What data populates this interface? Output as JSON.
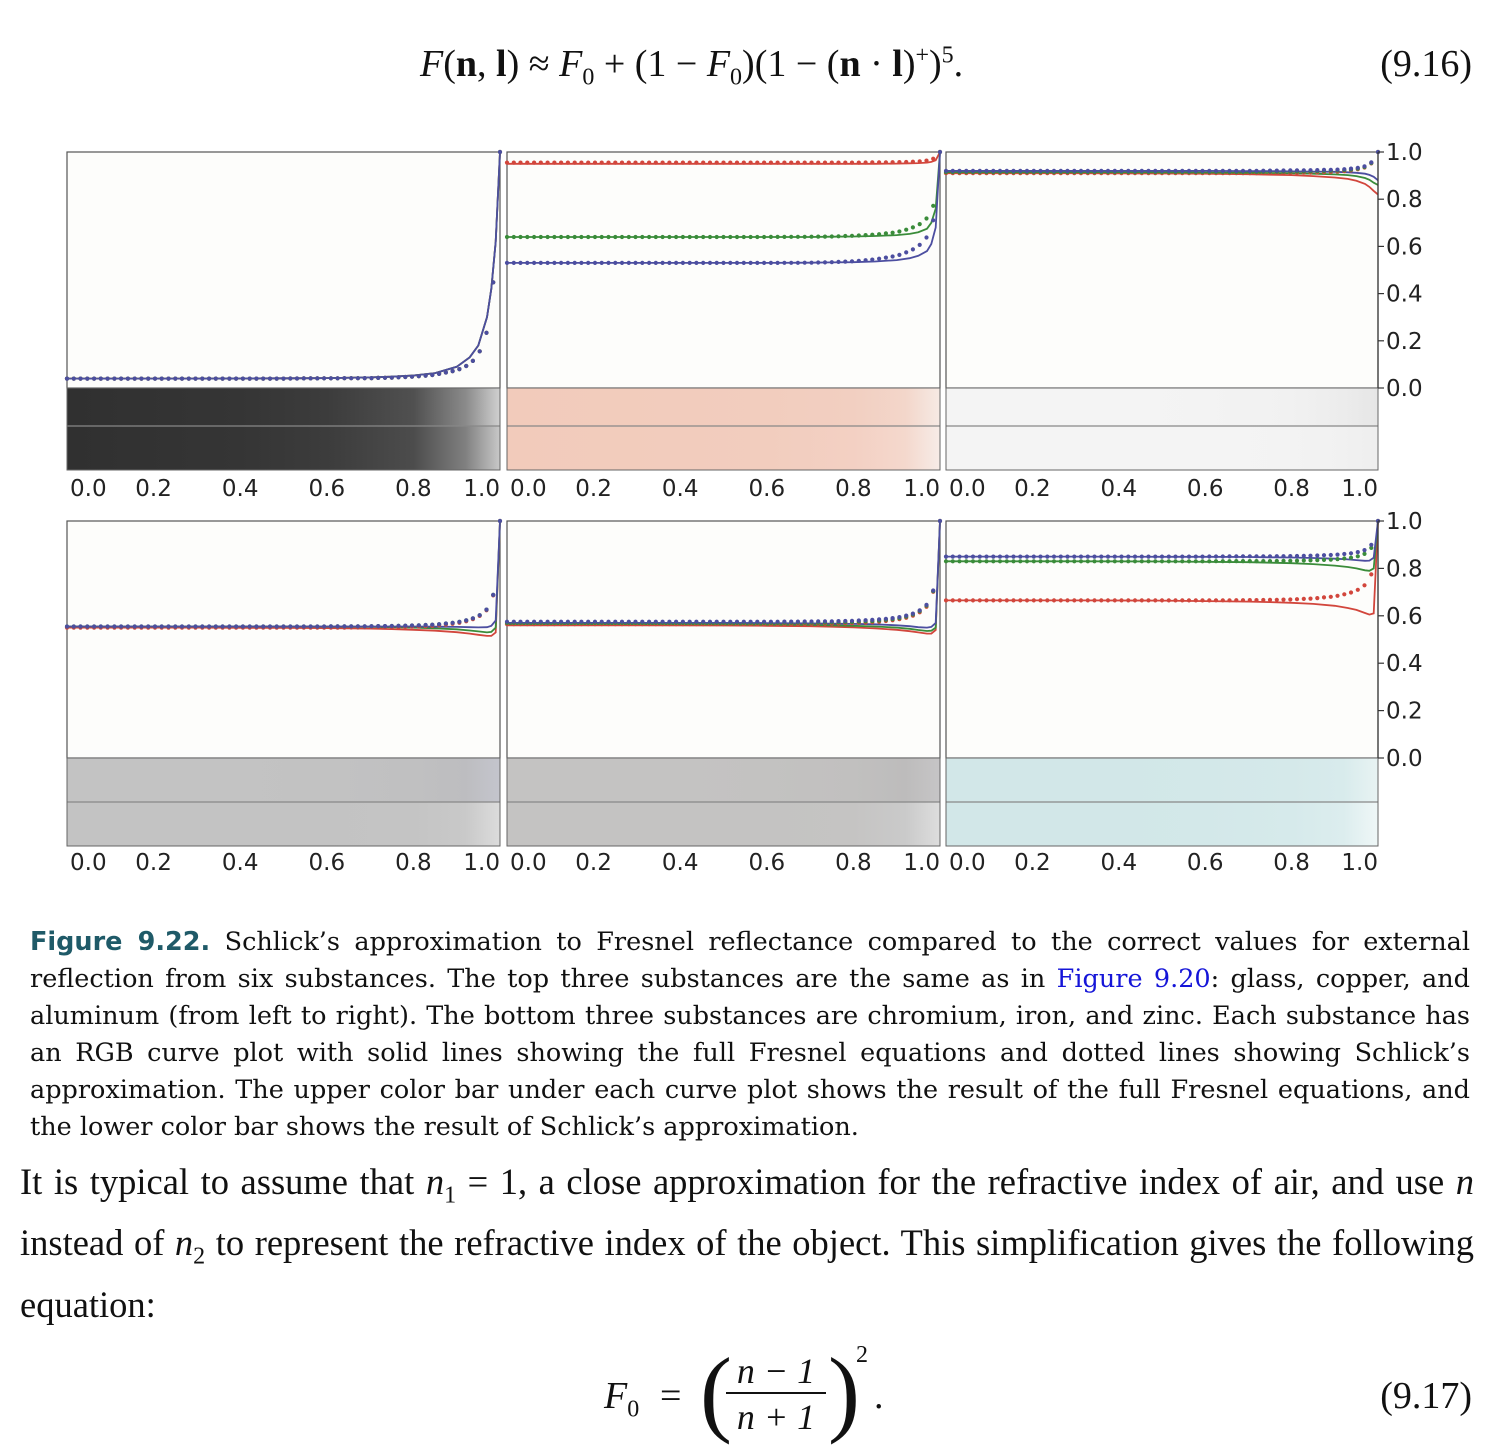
{
  "equation_9_16": {
    "expression": "F(n, l) ≈ F0 + (1 − F0)(1 − (n · l)+)5.",
    "number": "(9.16)"
  },
  "figure": {
    "label": "Figure 9.22.",
    "caption_before_link": "Schlick’s approximation to Fresnel reflectance compared to the correct values for external reflection from six substances. The top three substances are the same as in",
    "caption_link": "Figure 9.20",
    "caption_after_link": ": glass, copper, and aluminum (from left to right). The bottom three substances are chromium, iron, and zinc. Each substance has an RGB curve plot with solid lines showing the full Fresnel equations and dotted lines showing Schlick’s approximation. The upper color bar under each curve plot shows the result of the full Fresnel equations, and the lower color bar shows the result of Schlick’s approximation."
  },
  "paragraph": "It is typical to assume that n1 = 1, a close approximation for the refractive index of air, and use n instead of n2 to represent the refractive index of the object. This simplification gives the following equation:",
  "equation_9_17": {
    "lhs": "F0",
    "equals": "=",
    "numerator": "n − 1",
    "denominator": "n + 1",
    "exponent": "2",
    "trailing": ".",
    "number": "(9.17)"
  },
  "colors": {
    "red": "#d2463c",
    "green": "#3a8c3a",
    "blue": "#4c4ea0",
    "caption_label": "#1f5a68",
    "link": "#1515d8"
  },
  "chart_data": [
    {
      "type": "line",
      "substance": "glass",
      "x": [
        0.0,
        0.3,
        0.5,
        0.6,
        0.7,
        0.75,
        0.8,
        0.85,
        0.9,
        0.93,
        0.95,
        0.97,
        0.98,
        0.99,
        1.0
      ],
      "series": [
        {
          "kind": "full",
          "color": "red",
          "values": [
            0.04,
            0.04,
            0.041,
            0.042,
            0.045,
            0.048,
            0.053,
            0.063,
            0.09,
            0.13,
            0.18,
            0.3,
            0.42,
            0.62,
            1.0
          ]
        },
        {
          "kind": "full",
          "color": "green",
          "values": [
            0.04,
            0.04,
            0.041,
            0.042,
            0.045,
            0.048,
            0.053,
            0.063,
            0.09,
            0.13,
            0.18,
            0.3,
            0.42,
            0.62,
            1.0
          ]
        },
        {
          "kind": "full",
          "color": "blue",
          "values": [
            0.04,
            0.04,
            0.041,
            0.042,
            0.045,
            0.048,
            0.053,
            0.063,
            0.09,
            0.13,
            0.18,
            0.3,
            0.42,
            0.62,
            1.0
          ]
        },
        {
          "kind": "schlick",
          "color": "red",
          "values": [
            0.04,
            0.04,
            0.04,
            0.041,
            0.042,
            0.044,
            0.048,
            0.056,
            0.075,
            0.1,
            0.14,
            0.24,
            0.36,
            0.56,
            1.0
          ]
        },
        {
          "kind": "schlick",
          "color": "green",
          "values": [
            0.04,
            0.04,
            0.04,
            0.041,
            0.042,
            0.044,
            0.048,
            0.056,
            0.075,
            0.1,
            0.14,
            0.24,
            0.36,
            0.56,
            1.0
          ]
        },
        {
          "kind": "schlick",
          "color": "blue",
          "values": [
            0.04,
            0.04,
            0.04,
            0.041,
            0.042,
            0.044,
            0.048,
            0.056,
            0.075,
            0.1,
            0.14,
            0.24,
            0.36,
            0.56,
            1.0
          ]
        }
      ],
      "bar_full": [
        "#303030",
        "#353535",
        "#3c3c3c",
        "#505050",
        "#8a8a8a",
        "#d0d0d0"
      ],
      "bar_schlick": [
        "#303030",
        "#353535",
        "#3c3c3c",
        "#4c4c4c",
        "#808080",
        "#c8c8c8"
      ],
      "xlim": [
        0.0,
        1.0
      ],
      "ylim": [
        0.0,
        1.0
      ]
    },
    {
      "type": "line",
      "substance": "copper",
      "x": [
        0.0,
        0.3,
        0.5,
        0.6,
        0.7,
        0.75,
        0.8,
        0.85,
        0.9,
        0.93,
        0.95,
        0.97,
        0.98,
        0.99,
        1.0
      ],
      "series": [
        {
          "kind": "full",
          "color": "red",
          "values": [
            0.95,
            0.95,
            0.95,
            0.95,
            0.95,
            0.95,
            0.95,
            0.95,
            0.951,
            0.952,
            0.953,
            0.955,
            0.958,
            0.965,
            1.0
          ]
        },
        {
          "kind": "full",
          "color": "green",
          "values": [
            0.64,
            0.64,
            0.64,
            0.64,
            0.64,
            0.641,
            0.642,
            0.644,
            0.648,
            0.653,
            0.66,
            0.675,
            0.7,
            0.76,
            1.0
          ]
        },
        {
          "kind": "full",
          "color": "blue",
          "values": [
            0.53,
            0.53,
            0.53,
            0.53,
            0.531,
            0.532,
            0.533,
            0.536,
            0.542,
            0.55,
            0.56,
            0.58,
            0.61,
            0.68,
            1.0
          ]
        },
        {
          "kind": "schlick",
          "color": "red",
          "values": [
            0.955,
            0.955,
            0.955,
            0.955,
            0.955,
            0.955,
            0.955,
            0.956,
            0.957,
            0.958,
            0.96,
            0.964,
            0.968,
            0.976,
            1.0
          ]
        },
        {
          "kind": "schlick",
          "color": "green",
          "values": [
            0.64,
            0.64,
            0.64,
            0.64,
            0.641,
            0.642,
            0.645,
            0.65,
            0.66,
            0.675,
            0.69,
            0.72,
            0.75,
            0.8,
            1.0
          ]
        },
        {
          "kind": "schlick",
          "color": "blue",
          "values": [
            0.53,
            0.53,
            0.53,
            0.53,
            0.531,
            0.533,
            0.537,
            0.545,
            0.56,
            0.58,
            0.6,
            0.64,
            0.68,
            0.75,
            1.0
          ]
        }
      ],
      "bar_full": [
        "#f2cbbb",
        "#f2ccbd",
        "#f2cdbe",
        "#f2cfc1",
        "#f3d6ca",
        "#f6eae4"
      ],
      "bar_schlick": [
        "#f2cbbb",
        "#f2ccbd",
        "#f2cdbe",
        "#f3d0c3",
        "#f4d8cd",
        "#f7ece7"
      ],
      "xlim": [
        0.0,
        1.0
      ],
      "ylim": [
        0.0,
        1.0
      ]
    },
    {
      "type": "line",
      "substance": "aluminum",
      "x": [
        0.0,
        0.3,
        0.5,
        0.6,
        0.7,
        0.75,
        0.8,
        0.85,
        0.9,
        0.93,
        0.95,
        0.97,
        0.98,
        0.99,
        1.0
      ],
      "series": [
        {
          "kind": "full",
          "color": "red",
          "values": [
            0.91,
            0.91,
            0.909,
            0.908,
            0.906,
            0.904,
            0.902,
            0.898,
            0.892,
            0.886,
            0.878,
            0.865,
            0.852,
            0.835,
            0.82
          ]
        },
        {
          "kind": "full",
          "color": "green",
          "values": [
            0.915,
            0.915,
            0.914,
            0.913,
            0.912,
            0.911,
            0.91,
            0.908,
            0.905,
            0.902,
            0.898,
            0.89,
            0.882,
            0.87,
            0.86
          ]
        },
        {
          "kind": "full",
          "color": "blue",
          "values": [
            0.92,
            0.92,
            0.92,
            0.92,
            0.919,
            0.919,
            0.918,
            0.917,
            0.916,
            0.914,
            0.912,
            0.908,
            0.903,
            0.895,
            0.88
          ]
        },
        {
          "kind": "schlick",
          "color": "red",
          "values": [
            0.91,
            0.91,
            0.91,
            0.91,
            0.91,
            0.911,
            0.912,
            0.913,
            0.916,
            0.92,
            0.925,
            0.935,
            0.945,
            0.96,
            1.0
          ]
        },
        {
          "kind": "schlick",
          "color": "green",
          "values": [
            0.915,
            0.915,
            0.915,
            0.915,
            0.915,
            0.916,
            0.917,
            0.918,
            0.921,
            0.924,
            0.928,
            0.937,
            0.947,
            0.962,
            1.0
          ]
        },
        {
          "kind": "schlick",
          "color": "blue",
          "values": [
            0.92,
            0.92,
            0.92,
            0.92,
            0.92,
            0.921,
            0.922,
            0.923,
            0.925,
            0.928,
            0.932,
            0.94,
            0.95,
            0.964,
            1.0
          ]
        }
      ],
      "bar_full": [
        "#f4f4f4",
        "#f4f4f4",
        "#f3f3f3",
        "#f1f1f1",
        "#ececec",
        "#e6e6e6"
      ],
      "bar_schlick": [
        "#f4f4f4",
        "#f4f4f4",
        "#f4f4f4",
        "#f3f3f3",
        "#f1f1f1",
        "#eeeeee"
      ],
      "xlim": [
        0.0,
        1.0
      ],
      "ylim": [
        0.0,
        1.0
      ]
    },
    {
      "type": "line",
      "substance": "chromium",
      "x": [
        0.0,
        0.3,
        0.5,
        0.6,
        0.7,
        0.75,
        0.8,
        0.85,
        0.9,
        0.93,
        0.95,
        0.97,
        0.98,
        0.99,
        1.0
      ],
      "series": [
        {
          "kind": "full",
          "color": "red",
          "values": [
            0.55,
            0.55,
            0.549,
            0.548,
            0.546,
            0.544,
            0.541,
            0.537,
            0.531,
            0.525,
            0.52,
            0.515,
            0.515,
            0.53,
            1.0
          ]
        },
        {
          "kind": "full",
          "color": "green",
          "values": [
            0.555,
            0.555,
            0.555,
            0.554,
            0.553,
            0.552,
            0.55,
            0.547,
            0.543,
            0.538,
            0.534,
            0.53,
            0.532,
            0.55,
            1.0
          ]
        },
        {
          "kind": "full",
          "color": "blue",
          "values": [
            0.555,
            0.555,
            0.555,
            0.555,
            0.555,
            0.555,
            0.555,
            0.554,
            0.553,
            0.552,
            0.551,
            0.552,
            0.558,
            0.58,
            1.0
          ]
        },
        {
          "kind": "schlick",
          "color": "red",
          "values": [
            0.55,
            0.55,
            0.55,
            0.55,
            0.551,
            0.552,
            0.554,
            0.558,
            0.568,
            0.58,
            0.595,
            0.625,
            0.66,
            0.72,
            1.0
          ]
        },
        {
          "kind": "schlick",
          "color": "green",
          "values": [
            0.555,
            0.555,
            0.555,
            0.555,
            0.556,
            0.557,
            0.559,
            0.563,
            0.572,
            0.584,
            0.598,
            0.628,
            0.662,
            0.722,
            1.0
          ]
        },
        {
          "kind": "schlick",
          "color": "blue",
          "values": [
            0.555,
            0.555,
            0.555,
            0.555,
            0.556,
            0.557,
            0.559,
            0.563,
            0.572,
            0.584,
            0.598,
            0.628,
            0.662,
            0.722,
            1.0
          ]
        }
      ],
      "bar_full": [
        "#c3c3c3",
        "#c3c3c3",
        "#c2c2c2",
        "#c0c0c1",
        "#bdbdc0",
        "#c4c5cd"
      ],
      "bar_schlick": [
        "#c3c3c3",
        "#c3c3c3",
        "#c3c3c3",
        "#c4c4c4",
        "#c9c9c9",
        "#dcdcdc"
      ],
      "xlim": [
        0.0,
        1.0
      ],
      "ylim": [
        0.0,
        1.0
      ]
    },
    {
      "type": "line",
      "substance": "iron",
      "x": [
        0.0,
        0.3,
        0.5,
        0.6,
        0.7,
        0.75,
        0.8,
        0.85,
        0.9,
        0.93,
        0.95,
        0.97,
        0.98,
        0.99,
        1.0
      ],
      "series": [
        {
          "kind": "full",
          "color": "red",
          "values": [
            0.56,
            0.56,
            0.559,
            0.558,
            0.556,
            0.554,
            0.551,
            0.547,
            0.541,
            0.535,
            0.53,
            0.525,
            0.525,
            0.54,
            1.0
          ]
        },
        {
          "kind": "full",
          "color": "green",
          "values": [
            0.565,
            0.565,
            0.564,
            0.563,
            0.562,
            0.56,
            0.558,
            0.555,
            0.55,
            0.545,
            0.54,
            0.536,
            0.537,
            0.55,
            1.0
          ]
        },
        {
          "kind": "full",
          "color": "blue",
          "values": [
            0.57,
            0.57,
            0.57,
            0.569,
            0.568,
            0.567,
            0.566,
            0.564,
            0.56,
            0.556,
            0.552,
            0.55,
            0.553,
            0.57,
            1.0
          ]
        },
        {
          "kind": "schlick",
          "color": "red",
          "values": [
            0.565,
            0.565,
            0.565,
            0.565,
            0.566,
            0.567,
            0.569,
            0.573,
            0.583,
            0.595,
            0.61,
            0.64,
            0.675,
            0.735,
            1.0
          ]
        },
        {
          "kind": "schlick",
          "color": "green",
          "values": [
            0.57,
            0.57,
            0.57,
            0.57,
            0.571,
            0.572,
            0.574,
            0.578,
            0.588,
            0.6,
            0.615,
            0.645,
            0.678,
            0.738,
            1.0
          ]
        },
        {
          "kind": "schlick",
          "color": "blue",
          "values": [
            0.575,
            0.575,
            0.575,
            0.575,
            0.576,
            0.577,
            0.579,
            0.583,
            0.592,
            0.604,
            0.618,
            0.648,
            0.681,
            0.74,
            1.0
          ]
        }
      ],
      "bar_full": [
        "#c4c3c2",
        "#c4c3c2",
        "#c3c2c1",
        "#c1c0bf",
        "#bdbcbc",
        "#c6c5c6"
      ],
      "bar_schlick": [
        "#c4c3c2",
        "#c4c3c2",
        "#c4c3c2",
        "#c5c4c3",
        "#cacaca",
        "#dddddd"
      ],
      "xlim": [
        0.0,
        1.0
      ],
      "ylim": [
        0.0,
        1.0
      ]
    },
    {
      "type": "line",
      "substance": "zinc",
      "x": [
        0.0,
        0.3,
        0.5,
        0.6,
        0.7,
        0.75,
        0.8,
        0.85,
        0.9,
        0.93,
        0.95,
        0.97,
        0.98,
        0.99,
        1.0
      ],
      "series": [
        {
          "kind": "full",
          "color": "red",
          "values": [
            0.665,
            0.665,
            0.664,
            0.662,
            0.66,
            0.658,
            0.655,
            0.65,
            0.642,
            0.633,
            0.625,
            0.612,
            0.605,
            0.61,
            1.0
          ]
        },
        {
          "kind": "full",
          "color": "green",
          "values": [
            0.83,
            0.83,
            0.829,
            0.828,
            0.826,
            0.824,
            0.822,
            0.818,
            0.812,
            0.806,
            0.8,
            0.792,
            0.79,
            0.8,
            1.0
          ]
        },
        {
          "kind": "full",
          "color": "blue",
          "values": [
            0.85,
            0.85,
            0.849,
            0.849,
            0.848,
            0.847,
            0.846,
            0.844,
            0.841,
            0.838,
            0.835,
            0.832,
            0.833,
            0.845,
            1.0
          ]
        },
        {
          "kind": "schlick",
          "color": "red",
          "values": [
            0.665,
            0.665,
            0.665,
            0.665,
            0.666,
            0.667,
            0.669,
            0.673,
            0.682,
            0.694,
            0.706,
            0.73,
            0.755,
            0.8,
            1.0
          ]
        },
        {
          "kind": "schlick",
          "color": "green",
          "values": [
            0.83,
            0.83,
            0.83,
            0.83,
            0.831,
            0.831,
            0.832,
            0.834,
            0.838,
            0.843,
            0.849,
            0.862,
            0.876,
            0.9,
            1.0
          ]
        },
        {
          "kind": "schlick",
          "color": "blue",
          "values": [
            0.85,
            0.85,
            0.85,
            0.85,
            0.851,
            0.851,
            0.852,
            0.854,
            0.857,
            0.862,
            0.867,
            0.878,
            0.89,
            0.912,
            1.0
          ]
        }
      ],
      "bar_full": [
        "#d2e7e8",
        "#d2e7e8",
        "#d3e8e9",
        "#d5e9ea",
        "#d8ebec",
        "#e8f3f3"
      ],
      "bar_schlick": [
        "#d2e7e8",
        "#d2e7e8",
        "#d3e8e9",
        "#d6eaeb",
        "#dcedee",
        "#eff7f7"
      ],
      "xlim": [
        0.0,
        1.0
      ],
      "ylim": [
        0.0,
        1.0
      ]
    }
  ],
  "axes": {
    "x_ticks": [
      "0.0",
      "0.2",
      "0.4",
      "0.6",
      "0.8",
      "1.0"
    ],
    "x_tick_values": [
      0.0,
      0.2,
      0.4,
      0.6,
      0.8,
      1.0
    ],
    "y_ticks": [
      "1.0",
      "0.8",
      "0.6",
      "0.4",
      "0.2",
      "0.0"
    ],
    "y_tick_values": [
      1.0,
      0.8,
      0.6,
      0.4,
      0.2,
      0.0
    ]
  }
}
